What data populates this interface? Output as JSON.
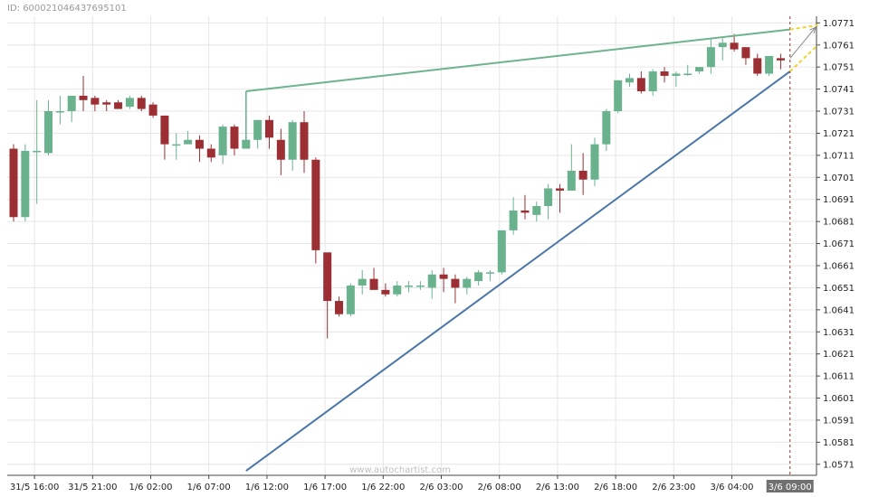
{
  "chart_id_text": "ID: 600021046437695101",
  "watermark": "www.autochartist.com",
  "colors": {
    "up": "#6ab28e",
    "down": "#9b2f33",
    "resistance": "#6db38f",
    "support": "#4a76a8",
    "forecast": "#f2d22e",
    "arrow": "#888888",
    "grid": "#e6e6e6",
    "current_label_bg": "#707070",
    "current_label_text": "#ffffff"
  },
  "chart_data": {
    "type": "candlestick",
    "title": "",
    "xlabel": "",
    "ylabel": "",
    "ylim": [
      1.0566,
      1.0774
    ],
    "y_ticks": [
      "1.0771",
      "1.0761",
      "1.0751",
      "1.0741",
      "1.0731",
      "1.0721",
      "1.0711",
      "1.0701",
      "1.0691",
      "1.0681",
      "1.0671",
      "1.0661",
      "1.0651",
      "1.0641",
      "1.0631",
      "1.0621",
      "1.0611",
      "1.0601",
      "1.0591",
      "1.0581",
      "1.0571"
    ],
    "x_ticks": [
      {
        "label": "31/5 16:00",
        "index": 1.8
      },
      {
        "label": "31/5 21:00",
        "index": 6.8
      },
      {
        "label": "1/6 02:00",
        "index": 11.8
      },
      {
        "label": "1/6 07:00",
        "index": 16.8
      },
      {
        "label": "1/6 12:00",
        "index": 21.8
      },
      {
        "label": "1/6 17:00",
        "index": 26.8
      },
      {
        "label": "1/6 22:00",
        "index": 31.8
      },
      {
        "label": "2/6 03:00",
        "index": 36.8
      },
      {
        "label": "2/6 08:00",
        "index": 41.8
      },
      {
        "label": "2/6 13:00",
        "index": 46.8
      },
      {
        "label": "2/6 18:00",
        "index": 51.8
      },
      {
        "label": "2/6 23:00",
        "index": 56.8
      },
      {
        "label": "3/6 04:00",
        "index": 61.8
      }
    ],
    "current_time_label": "3/6 09:00",
    "current_time_index": 66.8,
    "candles": [
      {
        "o": 1.0714,
        "h": 1.0716,
        "l": 1.0681,
        "c": 1.0683
      },
      {
        "o": 1.0683,
        "h": 1.0716,
        "l": 1.0681,
        "c": 1.0713
      },
      {
        "o": 1.0713,
        "h": 1.0736,
        "l": 1.0689,
        "c": 1.0713
      },
      {
        "o": 1.0712,
        "h": 1.0736,
        "l": 1.0711,
        "c": 1.0731
      },
      {
        "o": 1.0731,
        "h": 1.0738,
        "l": 1.0725,
        "c": 1.0731
      },
      {
        "o": 1.0731,
        "h": 1.0738,
        "l": 1.0726,
        "c": 1.0738
      },
      {
        "o": 1.0738,
        "h": 1.0747,
        "l": 1.0731,
        "c": 1.0736
      },
      {
        "o": 1.0737,
        "h": 1.0738,
        "l": 1.0731,
        "c": 1.0734
      },
      {
        "o": 1.0735,
        "h": 1.0736,
        "l": 1.0731,
        "c": 1.0734
      },
      {
        "o": 1.0735,
        "h": 1.0736,
        "l": 1.0732,
        "c": 1.0732
      },
      {
        "o": 1.0733,
        "h": 1.0738,
        "l": 1.0732,
        "c": 1.0737
      },
      {
        "o": 1.0737,
        "h": 1.0738,
        "l": 1.0731,
        "c": 1.0732
      },
      {
        "o": 1.0734,
        "h": 1.0735,
        "l": 1.0728,
        "c": 1.0729
      },
      {
        "o": 1.0729,
        "h": 1.0729,
        "l": 1.0709,
        "c": 1.0716
      },
      {
        "o": 1.0716,
        "h": 1.0721,
        "l": 1.0709,
        "c": 1.0716
      },
      {
        "o": 1.0716,
        "h": 1.0722,
        "l": 1.0716,
        "c": 1.0718
      },
      {
        "o": 1.0718,
        "h": 1.072,
        "l": 1.0708,
        "c": 1.0714
      },
      {
        "o": 1.0714,
        "h": 1.0716,
        "l": 1.0708,
        "c": 1.071
      },
      {
        "o": 1.0711,
        "h": 1.0725,
        "l": 1.0707,
        "c": 1.0724
      },
      {
        "o": 1.0724,
        "h": 1.0725,
        "l": 1.0711,
        "c": 1.0714
      },
      {
        "o": 1.0714,
        "h": 1.074,
        "l": 1.0714,
        "c": 1.0718
      },
      {
        "o": 1.0718,
        "h": 1.0727,
        "l": 1.0714,
        "c": 1.0727
      },
      {
        "o": 1.0727,
        "h": 1.0729,
        "l": 1.0714,
        "c": 1.0719
      },
      {
        "o": 1.0718,
        "h": 1.0723,
        "l": 1.0702,
        "c": 1.0709
      },
      {
        "o": 1.0709,
        "h": 1.0727,
        "l": 1.0704,
        "c": 1.0726
      },
      {
        "o": 1.0726,
        "h": 1.0731,
        "l": 1.0703,
        "c": 1.0709
      },
      {
        "o": 1.0709,
        "h": 1.071,
        "l": 1.0662,
        "c": 1.0668
      },
      {
        "o": 1.0667,
        "h": 1.0667,
        "l": 1.0628,
        "c": 1.0645
      },
      {
        "o": 1.0645,
        "h": 1.0647,
        "l": 1.0638,
        "c": 1.0639
      },
      {
        "o": 1.0639,
        "h": 1.0653,
        "l": 1.0638,
        "c": 1.0652
      },
      {
        "o": 1.0652,
        "h": 1.0659,
        "l": 1.0648,
        "c": 1.0655
      },
      {
        "o": 1.0655,
        "h": 1.066,
        "l": 1.0651,
        "c": 1.065
      },
      {
        "o": 1.065,
        "h": 1.0653,
        "l": 1.0647,
        "c": 1.0648
      },
      {
        "o": 1.0648,
        "h": 1.0654,
        "l": 1.0647,
        "c": 1.0652
      },
      {
        "o": 1.0652,
        "h": 1.0654,
        "l": 1.0649,
        "c": 1.0652
      },
      {
        "o": 1.0652,
        "h": 1.0654,
        "l": 1.065,
        "c": 1.0652
      },
      {
        "o": 1.0651,
        "h": 1.0659,
        "l": 1.0646,
        "c": 1.0657
      },
      {
        "o": 1.0657,
        "h": 1.066,
        "l": 1.0649,
        "c": 1.0655
      },
      {
        "o": 1.0655,
        "h": 1.0657,
        "l": 1.0644,
        "c": 1.0651
      },
      {
        "o": 1.0651,
        "h": 1.0656,
        "l": 1.0648,
        "c": 1.0655
      },
      {
        "o": 1.0654,
        "h": 1.0659,
        "l": 1.0652,
        "c": 1.0658
      },
      {
        "o": 1.0658,
        "h": 1.0659,
        "l": 1.0654,
        "c": 1.0658
      },
      {
        "o": 1.0658,
        "h": 1.0677,
        "l": 1.0657,
        "c": 1.0677
      },
      {
        "o": 1.0677,
        "h": 1.0692,
        "l": 1.0675,
        "c": 1.0686
      },
      {
        "o": 1.0686,
        "h": 1.0693,
        "l": 1.0682,
        "c": 1.0685
      },
      {
        "o": 1.0684,
        "h": 1.069,
        "l": 1.0681,
        "c": 1.0688
      },
      {
        "o": 1.0688,
        "h": 1.0698,
        "l": 1.0682,
        "c": 1.0696
      },
      {
        "o": 1.0696,
        "h": 1.0698,
        "l": 1.0685,
        "c": 1.0695
      },
      {
        "o": 1.0695,
        "h": 1.0716,
        "l": 1.0695,
        "c": 1.0704
      },
      {
        "o": 1.0704,
        "h": 1.0712,
        "l": 1.0693,
        "c": 1.07
      },
      {
        "o": 1.07,
        "h": 1.0719,
        "l": 1.0697,
        "c": 1.0716
      },
      {
        "o": 1.0716,
        "h": 1.0732,
        "l": 1.0713,
        "c": 1.0731
      },
      {
        "o": 1.0731,
        "h": 1.0745,
        "l": 1.073,
        "c": 1.0745
      },
      {
        "o": 1.0744,
        "h": 1.0748,
        "l": 1.0742,
        "c": 1.0746
      },
      {
        "o": 1.0746,
        "h": 1.0749,
        "l": 1.0739,
        "c": 1.074
      },
      {
        "o": 1.074,
        "h": 1.075,
        "l": 1.0738,
        "c": 1.0749
      },
      {
        "o": 1.0749,
        "h": 1.0751,
        "l": 1.0744,
        "c": 1.0747
      },
      {
        "o": 1.0747,
        "h": 1.0749,
        "l": 1.0742,
        "c": 1.0748
      },
      {
        "o": 1.0748,
        "h": 1.0752,
        "l": 1.0747,
        "c": 1.0748
      },
      {
        "o": 1.0749,
        "h": 1.0751,
        "l": 1.0748,
        "c": 1.0751
      },
      {
        "o": 1.0751,
        "h": 1.0764,
        "l": 1.0748,
        "c": 1.076
      },
      {
        "o": 1.076,
        "h": 1.0764,
        "l": 1.0754,
        "c": 1.0762
      },
      {
        "o": 1.0762,
        "h": 1.0766,
        "l": 1.0758,
        "c": 1.0759
      },
      {
        "o": 1.076,
        "h": 1.076,
        "l": 1.0752,
        "c": 1.0755
      },
      {
        "o": 1.0755,
        "h": 1.0757,
        "l": 1.0747,
        "c": 1.0748
      },
      {
        "o": 1.0748,
        "h": 1.0756,
        "l": 1.0747,
        "c": 1.0756
      },
      {
        "o": 1.0755,
        "h": 1.0757,
        "l": 1.075,
        "c": 1.0754
      }
    ],
    "trendlines": [
      {
        "role": "resistance",
        "start": {
          "index": 20.0,
          "price": 1.074
        },
        "end": {
          "index": 66.8,
          "price": 1.0768
        }
      },
      {
        "role": "support",
        "start": {
          "index": 20.0,
          "price": 1.0568
        },
        "end": {
          "index": 66.8,
          "price": 1.0749
        }
      }
    ],
    "resistance_start_vertical": {
      "index": 20.0,
      "from_price": 1.0715,
      "to_price": 1.074
    },
    "forecast_lines": [
      {
        "start": {
          "index": 66.8,
          "price": 1.0768
        },
        "end": {
          "index": 69.2,
          "price": 1.077
        }
      },
      {
        "start": {
          "index": 66.8,
          "price": 1.0749
        },
        "end": {
          "index": 69.2,
          "price": 1.0761
        }
      }
    ],
    "forecast_arrow": {
      "start": {
        "index": 66.8,
        "price": 1.0755
      },
      "end": {
        "index": 69.0,
        "price": 1.0769
      }
    }
  }
}
